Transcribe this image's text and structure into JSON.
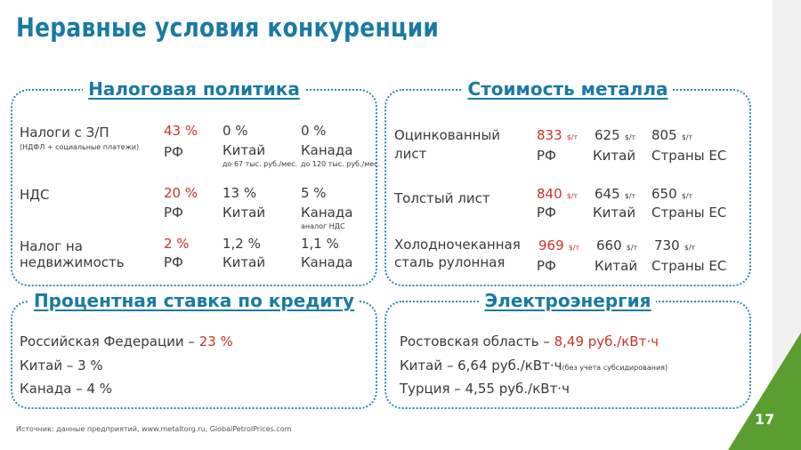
{
  "title": "Неравные условия конкуренции",
  "page_number": "17",
  "tax_panel": {
    "title": "Налоговая политика",
    "rows": [
      {
        "label": "Налоги с З/П",
        "sublabel": "(НДФЛ + социальные платежи)",
        "ru_value": "43 %",
        "ru_country": "РФ",
        "cn_value": "0 %",
        "cn_country": "Китай",
        "cn_note": "до 67 тыс. руб./мес.",
        "ca_value": "0 %",
        "ca_country": "Канада",
        "ca_note": "до 120 тыс. руб./мес."
      },
      {
        "label": "НДС",
        "ru_value": "20 %",
        "ru_country": "РФ",
        "cn_value": "13 %",
        "cn_country": "Китай",
        "ca_value": "5 %",
        "ca_country": "Канада",
        "ca_note": "аналог НДС"
      },
      {
        "label_line1": "Налог на",
        "label_line2": "недвижимость",
        "ru_value": "2 %",
        "ru_country": "РФ",
        "cn_value": "1,2 %",
        "cn_country": "Китай",
        "ca_value": "1,1 %",
        "ca_country": "Канада"
      }
    ]
  },
  "metal_panel": {
    "title": "Стоимость металла",
    "unit": "$/т",
    "rows": [
      {
        "label_line1": "Оцинкованный",
        "label_line2": "лист",
        "ru_value": "833",
        "ru_country": "РФ",
        "cn_value": "625",
        "cn_country": "Китай",
        "eu_value": "805",
        "eu_country": "Страны ЕС"
      },
      {
        "label_line1": "Толстый лист",
        "ru_value": "840",
        "ru_country": "РФ",
        "cn_value": "645",
        "cn_country": "Китай",
        "eu_value": "650",
        "eu_country": "Страны ЕС"
      },
      {
        "label_line1": "Холодночеканная",
        "label_line2": "сталь рулонная",
        "ru_value": "969",
        "ru_country": "РФ",
        "cn_value": "660",
        "cn_country": "Китай",
        "eu_value": "730",
        "eu_country": "Страны ЕС"
      }
    ]
  },
  "credit_panel": {
    "title": "Процентная ставка по кредиту",
    "lines": [
      {
        "text": "Российская Федерации – ",
        "value": "23 %"
      },
      {
        "text": "Китай – 3 %"
      },
      {
        "text": "Канада – 4 %"
      }
    ]
  },
  "energy_panel": {
    "title": "Электроэнергия",
    "lines": [
      {
        "text": "Ростовская область – ",
        "value": "8,49 руб./кВт·ч"
      },
      {
        "text": "Китай – 6,64 руб./кВт·ч",
        "note": "(без учета субсидирования)"
      },
      {
        "text": "Турция – 4,55 руб./кВт·ч"
      }
    ]
  },
  "source": "Источник: данные предприятий, www.metaltorg.ru, GlobalPetrolPrices.com",
  "colors": {
    "accent": "#1a7aa3",
    "highlight": "#c8342a",
    "corner_green": "#5a9e2f"
  }
}
